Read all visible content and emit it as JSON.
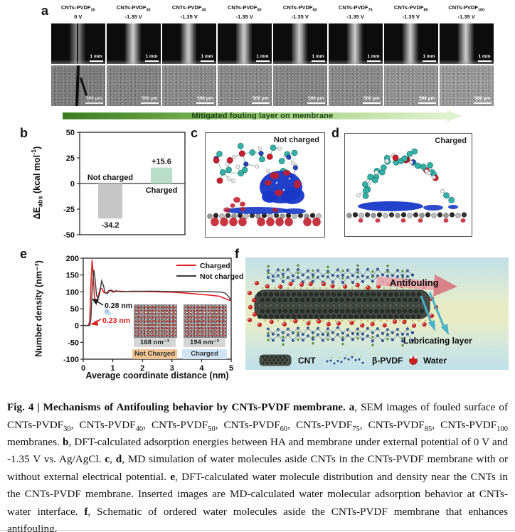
{
  "panel_a": {
    "label": "a",
    "scale_top": "1 mm",
    "scale_bottom": "500 μm",
    "arrow_text": "Mitigated fouling layer on membrane",
    "arrow_color_start": "#3b7a1f",
    "arrow_color_end": "#e4f3d6",
    "columns": [
      {
        "name": "CNTs-PVDF",
        "sub": "30",
        "volt": "0 V"
      },
      {
        "name": "CNTs-PVDF",
        "sub": "30",
        "volt": "-1.35 V"
      },
      {
        "name": "CNTs-PVDF",
        "sub": "40",
        "volt": "-1.35 V"
      },
      {
        "name": "CNTs-PVDF",
        "sub": "50",
        "volt": "-1.35 V"
      },
      {
        "name": "CNTs-PVDF",
        "sub": "60",
        "volt": "-1.35 V"
      },
      {
        "name": "CNTs-PVDF",
        "sub": "75",
        "volt": "-1.35 V"
      },
      {
        "name": "CNTs-PVDF",
        "sub": "85",
        "volt": "-1.35 V"
      },
      {
        "name": "CNTs-PVDF",
        "sub": "100",
        "volt": "-1.35 V"
      }
    ]
  },
  "panel_b": {
    "label": "b"
  },
  "panel_c": {
    "label": "c",
    "tag": "Not charged"
  },
  "panel_d": {
    "label": "d",
    "tag": "Charged"
  },
  "panel_e": {
    "label": "e"
  },
  "panel_f": {
    "label": "f",
    "antifouling_label": "Antifouling",
    "lubricating_label": "Lubricating layer",
    "legend": [
      {
        "name": "CNT"
      },
      {
        "name": "β-PVDF"
      },
      {
        "name": "Water"
      }
    ]
  },
  "chart_data": [
    {
      "type": "bar",
      "panel": "b",
      "categories": [
        "Not charged",
        "Charged"
      ],
      "values": [
        -34.2,
        15.6
      ],
      "value_labels": [
        "-34.2",
        "+15.6"
      ],
      "bar_colors": [
        "#c6c6c6",
        "#b9dfca"
      ],
      "ylabel": "ΔE_abs (kcal mol⁻¹)",
      "ylabel_parts": {
        "pre": "ΔE",
        "sub": "abs",
        "post": " (kcal mol",
        "sup": "-1",
        "end": ")"
      },
      "xlabel": "",
      "ylim": [
        -50,
        50
      ],
      "yticks": [
        50,
        25,
        0,
        -25,
        -50
      ],
      "grid": false
    },
    {
      "type": "line",
      "panel": "e",
      "xlabel": "Average coordinate distance (nm)",
      "ylabel": "Number density (nm⁻³)",
      "xlim": [
        0,
        5
      ],
      "ylim": [
        -100,
        200
      ],
      "xticks": [
        0,
        1,
        2,
        3,
        4,
        5
      ],
      "yticks": [
        200,
        150,
        100,
        50,
        0,
        -50,
        -100
      ],
      "grid": false,
      "legend_position": "top-right",
      "series": [
        {
          "name": "Charged",
          "color": "#e02020",
          "x": [
            0.02,
            0.18,
            0.22,
            0.26,
            0.3,
            0.33,
            0.38,
            0.44,
            0.5,
            0.57,
            0.63,
            0.7,
            0.78,
            0.86,
            0.95,
            1.05,
            1.2,
            1.5,
            2.0,
            2.5,
            3.0,
            3.5,
            4.0,
            4.3,
            4.6,
            4.8,
            5.0
          ],
          "y": [
            0,
            0,
            15,
            120,
            195,
            160,
            85,
            65,
            85,
            108,
            110,
            98,
            96,
            103,
            105,
            100,
            102,
            101,
            101,
            100,
            99,
            96,
            92,
            90,
            87,
            80,
            73
          ]
        },
        {
          "name": "Not charged",
          "color": "#3a3a3a",
          "x": [
            0.02,
            0.22,
            0.26,
            0.31,
            0.36,
            0.4,
            0.45,
            0.5,
            0.56,
            0.62,
            0.68,
            0.74,
            0.82,
            0.9,
            1.0,
            1.1,
            1.3,
            1.6,
            2.0,
            2.5,
            3.0,
            3.5,
            4.0,
            4.4,
            4.7,
            4.82,
            4.92,
            5.0
          ],
          "y": [
            0,
            0,
            20,
            120,
            165,
            140,
            90,
            80,
            95,
            133,
            120,
            97,
            95,
            105,
            99,
            103,
            100,
            102,
            102,
            102,
            101,
            101,
            101,
            100,
            99,
            95,
            85,
            74
          ]
        }
      ],
      "annotations": [
        {
          "text": "0.28 nm",
          "color": "#111111",
          "series": "Not charged"
        },
        {
          "text": "0.23 nm",
          "color": "#e02020",
          "series": "Charged"
        }
      ],
      "insets": [
        {
          "density": "168 nm⁻³",
          "state": "Not Charged",
          "bg": "#f2c493"
        },
        {
          "density": "194 nm⁻³",
          "state": "Charged",
          "bg": "#cfe4f4"
        }
      ]
    }
  ],
  "caption": {
    "segments": [
      {
        "t": "Fig. 4 | Mechanisms of Antifouling behavior by CNTs-PVDF membrane. ",
        "b": true
      },
      {
        "t": "a",
        "b": true
      },
      {
        "t": ", SEM images of fouled surface of CNTs-PVDF"
      },
      {
        "t": "30",
        "sub": true
      },
      {
        "t": ", CNTs-PVDF"
      },
      {
        "t": "40",
        "sub": true
      },
      {
        "t": ", CNTs-PVDF"
      },
      {
        "t": "50",
        "sub": true
      },
      {
        "t": ", CNTs-PVDF"
      },
      {
        "t": "60",
        "sub": true
      },
      {
        "t": ", CNTs-PVDF"
      },
      {
        "t": "75",
        "sub": true
      },
      {
        "t": ", CNTs-PVDF"
      },
      {
        "t": "85",
        "sub": true
      },
      {
        "t": ", CNTs-PVDF"
      },
      {
        "t": "100",
        "sub": true
      },
      {
        "t": " membranes. "
      },
      {
        "t": "b",
        "b": true
      },
      {
        "t": ", DFT-calculated adsorption energies between HA and membrane under external potential of 0 V and -1.35 V vs. Ag/AgCl. "
      },
      {
        "t": "c",
        "b": true
      },
      {
        "t": ", "
      },
      {
        "t": "d",
        "b": true
      },
      {
        "t": ", MD simulation of water molecules aside CNTs in the CNTs-PVDF membrane with or without external electrical potential. "
      },
      {
        "t": "e",
        "b": true
      },
      {
        "t": ", DFT-calculated water molecule distribution and density near the CNTs in the CNTs-PVDF membrane. Inserted images are MD-calculated water molecular adsorption behavior at CNTs-water interface. "
      },
      {
        "t": "f",
        "b": true
      },
      {
        "t": ", Schematic of ordered water molecules aside the CNTs-PVDF membrane that enhances antifouling."
      }
    ]
  }
}
